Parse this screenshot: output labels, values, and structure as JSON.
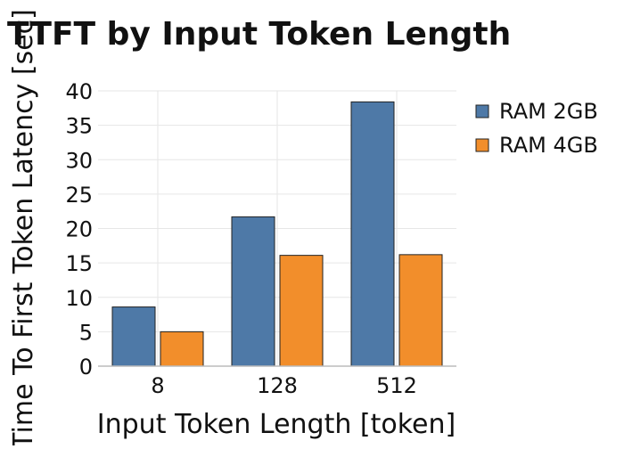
{
  "chart_data": {
    "type": "bar",
    "title": "TTFT by Input Token Length",
    "xlabel": "Input Token Length [token]",
    "ylabel": "Time To First Token Latency [sec]",
    "categories": [
      "8",
      "128",
      "512"
    ],
    "series": [
      {
        "name": "RAM 2GB",
        "color": "#4e79a7",
        "values": [
          8.6,
          21.7,
          38.4
        ]
      },
      {
        "name": "RAM 4GB",
        "color": "#f28e2b",
        "values": [
          5.0,
          16.1,
          16.2
        ]
      }
    ],
    "ylim": [
      0,
      40
    ],
    "yticks": [
      0,
      5,
      10,
      15,
      20,
      25,
      30,
      35,
      40
    ],
    "grid": true,
    "legend_position": "top-right"
  }
}
